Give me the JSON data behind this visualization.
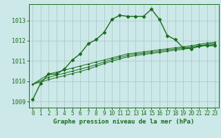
{
  "background_color": "#cce8e8",
  "grid_color": "#aacccc",
  "line_color": "#1a6b1a",
  "title": "Graphe pression niveau de la mer (hPa)",
  "xlim": [
    -0.5,
    23.5
  ],
  "ylim": [
    1008.7,
    1013.8
  ],
  "yticks": [
    1009,
    1010,
    1011,
    1012,
    1013
  ],
  "xticks": [
    0,
    1,
    2,
    3,
    4,
    5,
    6,
    7,
    8,
    9,
    10,
    11,
    12,
    13,
    14,
    15,
    16,
    17,
    18,
    19,
    20,
    21,
    22,
    23
  ],
  "series1_x": [
    0,
    1,
    2,
    3,
    4,
    5,
    6,
    7,
    8,
    9,
    10,
    11,
    12,
    13,
    14,
    15,
    16,
    17,
    18,
    19,
    20,
    21,
    22,
    23
  ],
  "series1_y": [
    1009.1,
    1009.9,
    1010.35,
    1010.35,
    1010.6,
    1011.05,
    1011.35,
    1011.85,
    1012.05,
    1012.4,
    1013.05,
    1013.25,
    1013.2,
    1013.2,
    1013.2,
    1013.55,
    1013.05,
    1012.25,
    1012.05,
    1011.65,
    1011.6,
    1011.75,
    1011.75,
    1011.75
  ],
  "series2_x": [
    0,
    2,
    3,
    4,
    5,
    6,
    7,
    8,
    9,
    10,
    11,
    12,
    13,
    14,
    15,
    16,
    17,
    18,
    19,
    20,
    21,
    22,
    23
  ],
  "series2_y": [
    1009.85,
    1010.35,
    1010.45,
    1010.55,
    1010.65,
    1010.75,
    1010.85,
    1010.95,
    1011.05,
    1011.15,
    1011.25,
    1011.35,
    1011.4,
    1011.45,
    1011.5,
    1011.55,
    1011.6,
    1011.65,
    1011.7,
    1011.75,
    1011.82,
    1011.88,
    1011.92
  ],
  "series3_x": [
    0,
    2,
    3,
    4,
    5,
    6,
    7,
    8,
    9,
    10,
    11,
    12,
    13,
    14,
    15,
    16,
    17,
    18,
    19,
    20,
    21,
    22,
    23
  ],
  "series3_y": [
    1009.85,
    1010.2,
    1010.3,
    1010.4,
    1010.5,
    1010.6,
    1010.7,
    1010.82,
    1010.95,
    1011.07,
    1011.18,
    1011.27,
    1011.34,
    1011.38,
    1011.43,
    1011.48,
    1011.54,
    1011.59,
    1011.64,
    1011.69,
    1011.76,
    1011.82,
    1011.87
  ],
  "series4_x": [
    0,
    2,
    3,
    4,
    5,
    6,
    7,
    8,
    9,
    10,
    11,
    12,
    13,
    14,
    15,
    16,
    17,
    18,
    19,
    20,
    21,
    22,
    23
  ],
  "series4_y": [
    1009.85,
    1010.08,
    1010.18,
    1010.28,
    1010.38,
    1010.48,
    1010.6,
    1010.73,
    1010.87,
    1010.99,
    1011.1,
    1011.2,
    1011.27,
    1011.32,
    1011.37,
    1011.42,
    1011.48,
    1011.53,
    1011.58,
    1011.63,
    1011.7,
    1011.77,
    1011.82
  ]
}
